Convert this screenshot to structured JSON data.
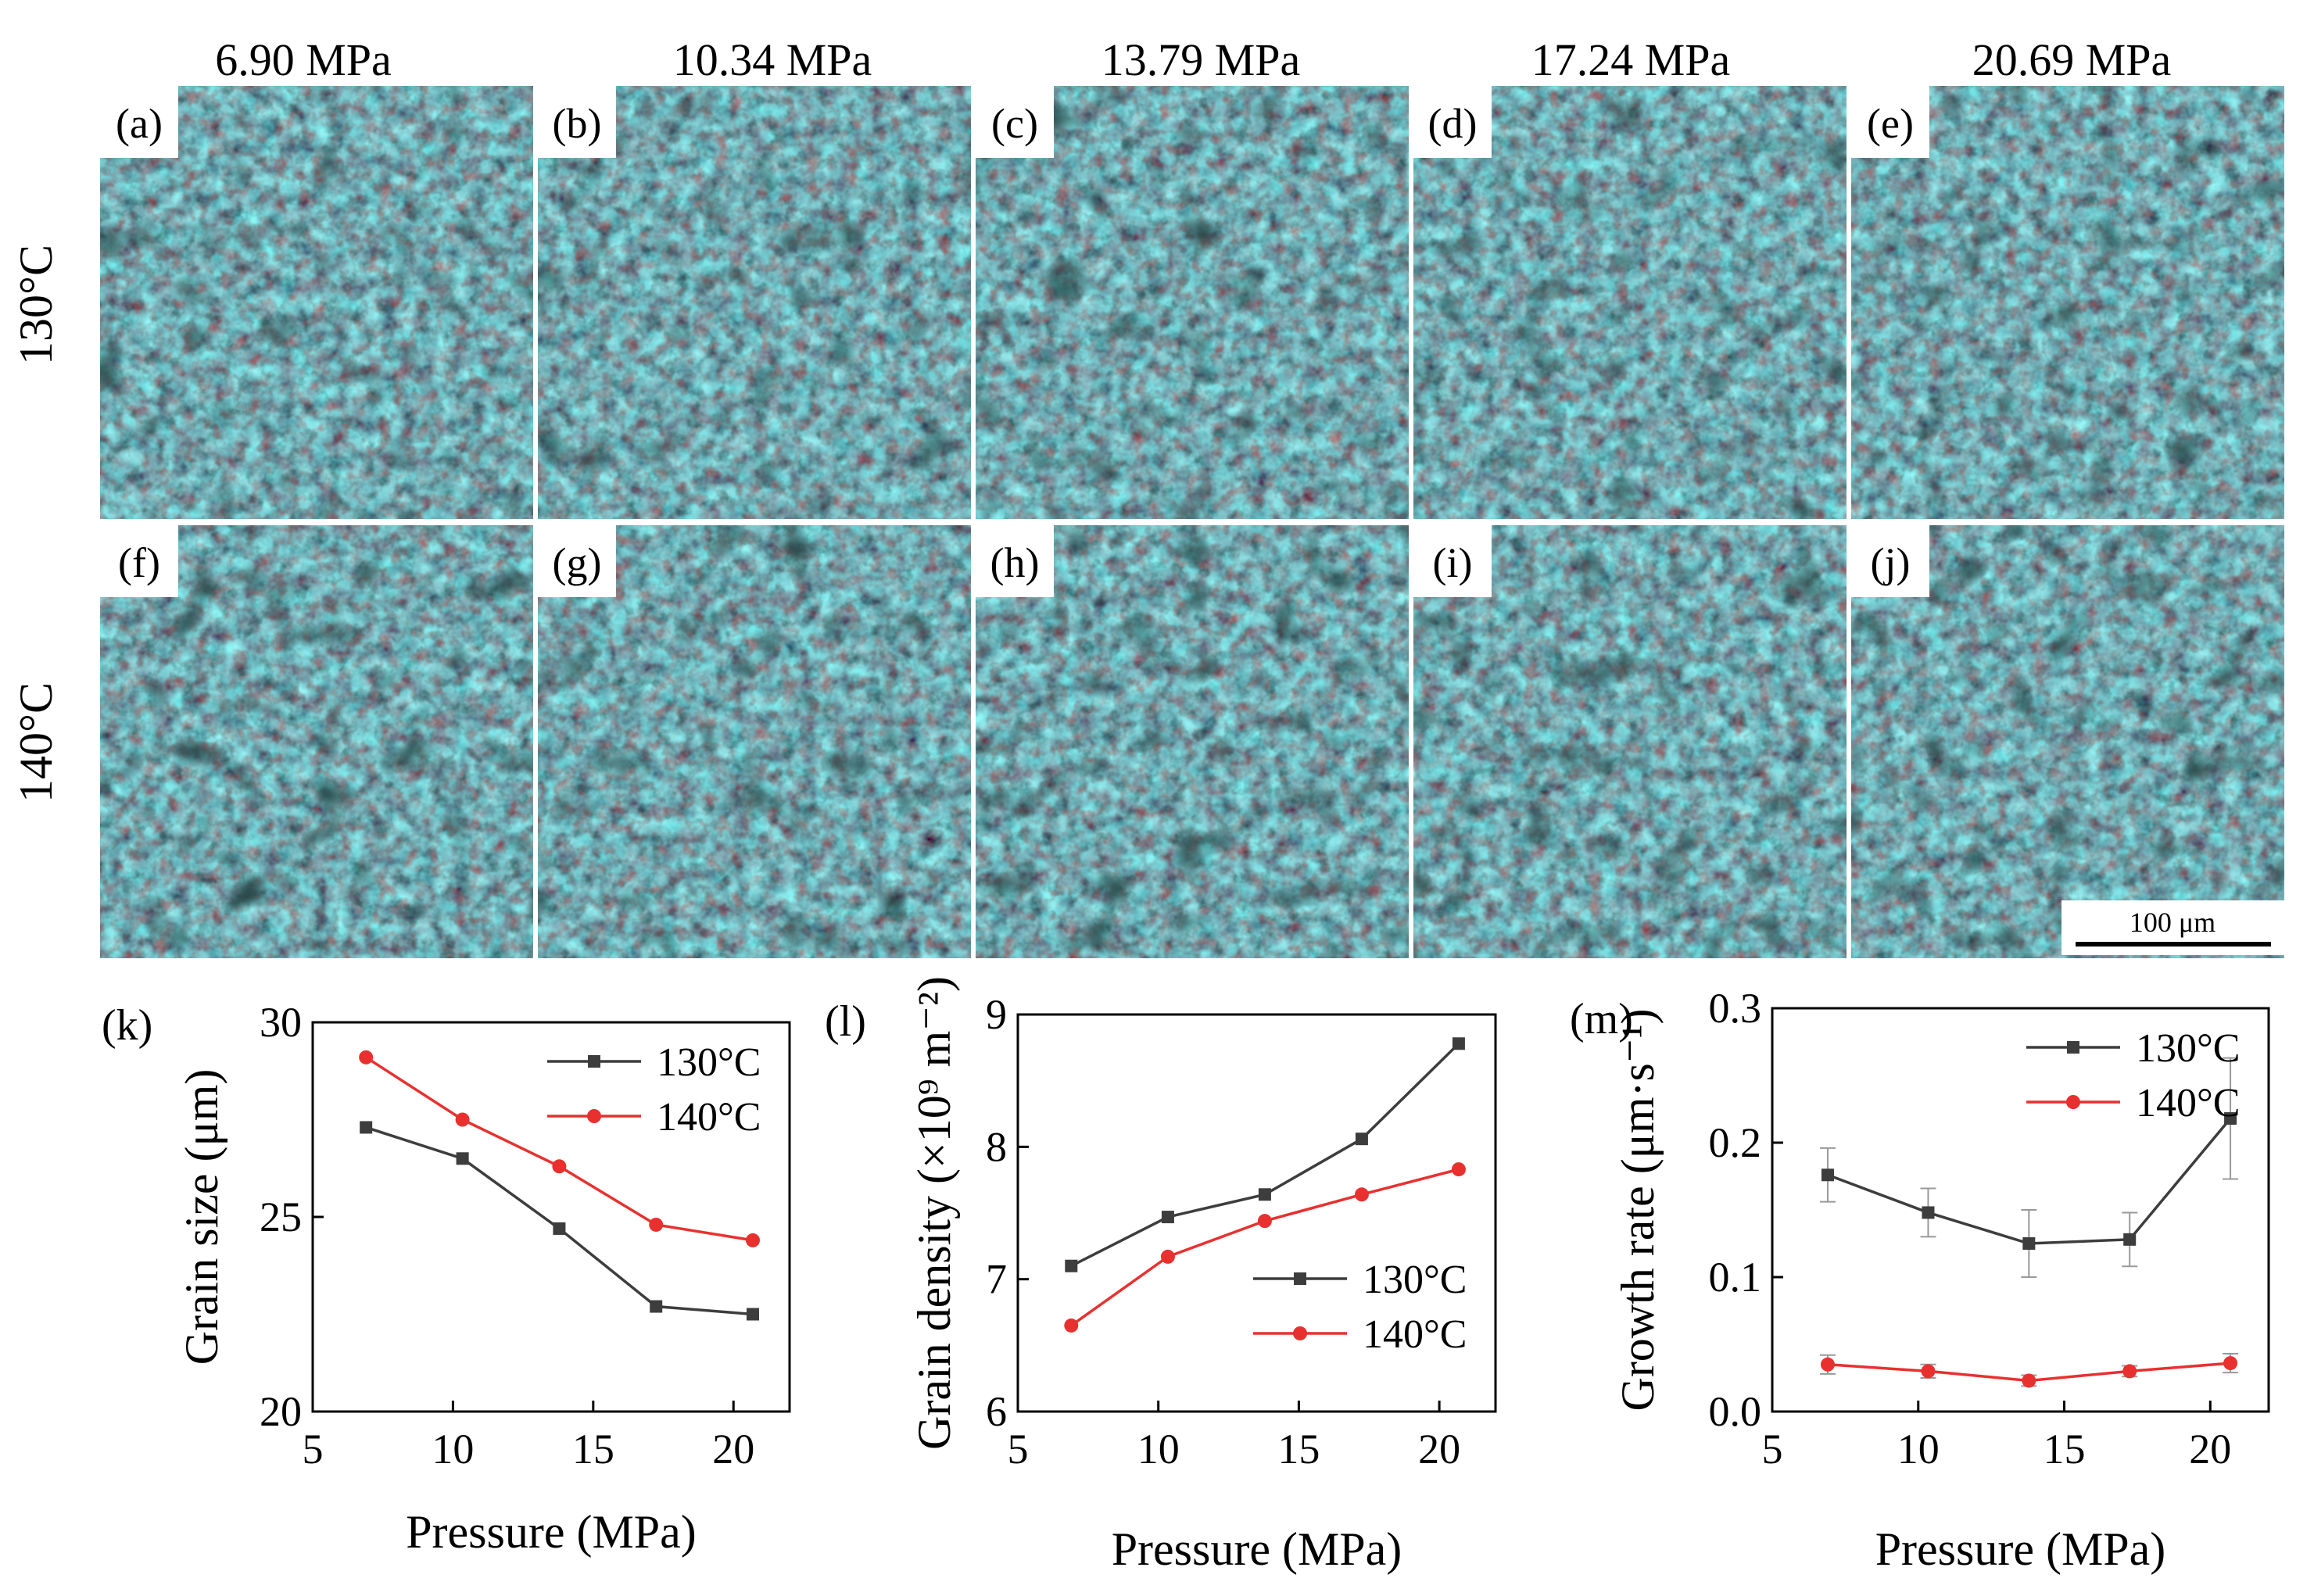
{
  "micrographs": {
    "pressure_headers": [
      "6.90 MPa",
      "10.34 MPa",
      "13.79 MPa",
      "17.24 MPa",
      "20.69 MPa"
    ],
    "temperature_rows": [
      "130°C",
      "140°C"
    ],
    "panel_labels": [
      [
        "(a)",
        "(b)",
        "(c)",
        "(d)",
        "(e)"
      ],
      [
        "(f)",
        "(g)",
        "(h)",
        "(i)",
        "(j)"
      ]
    ],
    "scale_bar_label": "100 μm",
    "colors": {
      "background": "#0b2a2a",
      "cyan": "#3cc3c8",
      "bright": "#9ff2ee",
      "red": "#b4503a",
      "dark": "#06110f"
    }
  },
  "chart_data": [
    {
      "panel": "(k)",
      "type": "line",
      "xlabel": "Pressure (MPa)",
      "ylabel": "Grain size (μm)",
      "xlim": [
        5,
        22
      ],
      "ylim": [
        20,
        30
      ],
      "xticks": [
        5,
        10,
        15,
        20
      ],
      "yticks": [
        20,
        25,
        30
      ],
      "legend": "top-right",
      "grid": false,
      "x": [
        6.9,
        10.34,
        13.79,
        17.24,
        20.69
      ],
      "series": [
        {
          "name": "130°C",
          "color": "#3d3d3d",
          "marker": "square",
          "values": [
            27.3,
            26.5,
            24.7,
            22.7,
            22.5
          ]
        },
        {
          "name": "140°C",
          "color": "#e8312f",
          "marker": "circle",
          "values": [
            29.1,
            27.5,
            26.3,
            24.8,
            24.4
          ]
        }
      ]
    },
    {
      "panel": "(l)",
      "type": "line",
      "xlabel": "Pressure (MPa)",
      "ylabel": "Grain density (×10⁹ m⁻²)",
      "xlim": [
        5,
        22
      ],
      "ylim": [
        6,
        9
      ],
      "xticks": [
        5,
        10,
        15,
        20
      ],
      "yticks": [
        6,
        7,
        8,
        9
      ],
      "legend": "bottom-right",
      "grid": false,
      "x": [
        6.9,
        10.34,
        13.79,
        17.24,
        20.69
      ],
      "series": [
        {
          "name": "130°C",
          "color": "#3d3d3d",
          "marker": "square",
          "values": [
            7.1,
            7.47,
            7.64,
            8.06,
            8.78
          ]
        },
        {
          "name": "140°C",
          "color": "#e8312f",
          "marker": "circle",
          "values": [
            6.65,
            7.17,
            7.44,
            7.64,
            7.83
          ]
        }
      ]
    },
    {
      "panel": "(m)",
      "type": "line",
      "xlabel": "Pressure (MPa)",
      "ylabel": "Growth rate (μm·s⁻¹)",
      "xlim": [
        5,
        22
      ],
      "ylim": [
        0.0,
        0.3
      ],
      "xticks": [
        5,
        10,
        15,
        20
      ],
      "yticks": [
        "0.0",
        "0.1",
        "0.2",
        "0.3"
      ],
      "legend": "top-right",
      "grid": false,
      "x": [
        6.9,
        10.34,
        13.79,
        17.24,
        20.69
      ],
      "series": [
        {
          "name": "130°C",
          "color": "#3d3d3d",
          "marker": "square",
          "values": [
            0.176,
            0.148,
            0.125,
            0.128,
            0.218
          ],
          "errors": [
            0.02,
            0.018,
            0.025,
            0.02,
            0.045
          ]
        },
        {
          "name": "140°C",
          "color": "#e8312f",
          "marker": "circle",
          "values": [
            0.035,
            0.03,
            0.023,
            0.03,
            0.036
          ],
          "errors": [
            0.007,
            0.005,
            0.004,
            0.004,
            0.007
          ]
        }
      ]
    }
  ]
}
